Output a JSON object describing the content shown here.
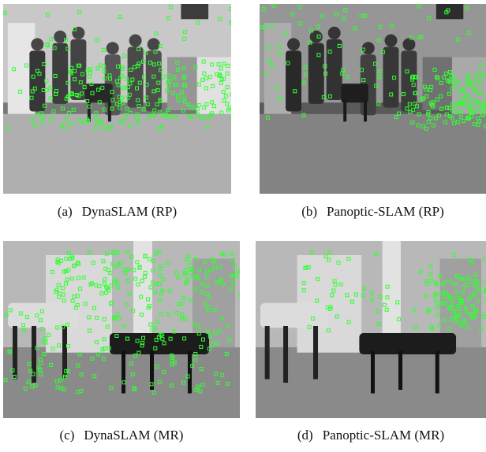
{
  "figure": {
    "panels": [
      {
        "tag": "(a)",
        "title": "DynaSLAM (RP)",
        "feature_color": "#33ff33"
      },
      {
        "tag": "(b)",
        "title": "Panoptic-SLAM (RP)",
        "feature_color": "#33ff33"
      },
      {
        "tag": "(c)",
        "title": "DynaSLAM (MR)",
        "feature_color": "#33ff33"
      },
      {
        "tag": "(d)",
        "title": "Panoptic-SLAM (MR)",
        "feature_color": "#33ff33"
      }
    ]
  }
}
